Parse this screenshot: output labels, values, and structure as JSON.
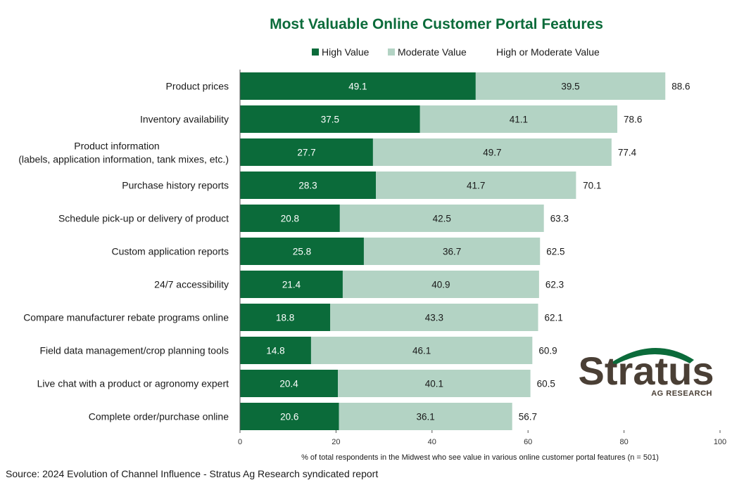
{
  "chart_data": {
    "type": "bar",
    "orientation": "horizontal",
    "stacked": true,
    "title": "Most Valuable Online Customer Portal Features",
    "categories": [
      [
        "Product prices"
      ],
      [
        "Inventory availability"
      ],
      [
        "Product information",
        "(labels, application information, tank mixes, etc.)"
      ],
      [
        "Purchase history reports"
      ],
      [
        "Schedule pick-up or delivery of product"
      ],
      [
        "Custom application reports"
      ],
      [
        "24/7 accessibility"
      ],
      [
        "Compare manufacturer rebate programs online"
      ],
      [
        "Field data management/crop planning tools"
      ],
      [
        "Live chat with a product or agronomy expert"
      ],
      [
        "Complete order/purchase online"
      ]
    ],
    "series": [
      {
        "name": "High Value",
        "color": "#0b6b3a",
        "label_color": "#ffffff",
        "values": [
          49.1,
          37.5,
          27.7,
          28.3,
          20.8,
          25.8,
          21.4,
          18.8,
          14.8,
          20.4,
          20.6
        ]
      },
      {
        "name": "Moderate Value",
        "color": "#b3d3c4",
        "label_color": "#1a1a1a",
        "values": [
          39.5,
          41.1,
          49.7,
          41.7,
          42.5,
          36.7,
          40.9,
          43.3,
          46.1,
          40.1,
          36.1
        ]
      }
    ],
    "totals": {
      "name": "High or Moderate Value",
      "values": [
        88.6,
        78.6,
        77.4,
        70.1,
        63.3,
        62.5,
        62.3,
        62.1,
        60.9,
        60.5,
        56.7
      ]
    },
    "xlim": [
      0,
      100
    ],
    "xticks": [
      0,
      20,
      40,
      60,
      80,
      100
    ],
    "xlabel": "% of total respondents in the Midwest who see value in various online customer portal features (n = 501)",
    "ylabel": "",
    "legend_position": "top",
    "grid": false,
    "source": "Source:  2024 Evolution of Channel Influence - Stratus Ag Research syndicated report"
  },
  "logo": {
    "name": "Stratus",
    "tagline": "AG RESEARCH",
    "text_color": "#4a3f35",
    "arc_color": "#0b6b3a"
  },
  "colors": {
    "title": "#0b6b3a",
    "axis": "#555555"
  }
}
